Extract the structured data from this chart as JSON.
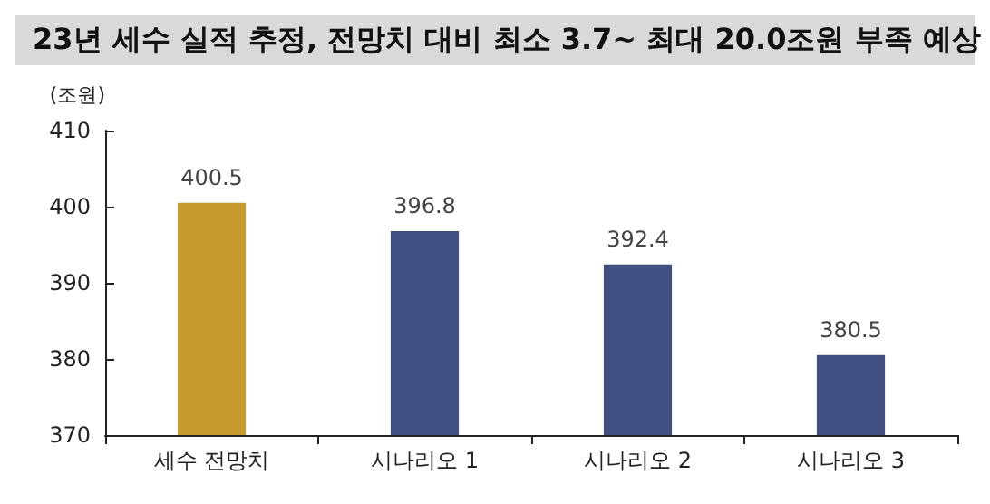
{
  "chart_data": {
    "type": "bar",
    "title": "23년 세수 실적 추정, 전망치 대비 최소 3.7~ 최대 20.0조원 부족 예상",
    "ylabel": "(조원)",
    "categories": [
      "세수 전망치",
      "시나리오 1",
      "시나리오 2",
      "시나리오 3"
    ],
    "values": [
      400.5,
      396.8,
      392.4,
      380.5
    ],
    "colors": [
      "#c89b30",
      "#414f80",
      "#414f80",
      "#414f80"
    ],
    "ylim": [
      370,
      410
    ],
    "yticks": [
      370,
      380,
      390,
      400,
      410
    ],
    "grid": false,
    "data_labels": true
  }
}
